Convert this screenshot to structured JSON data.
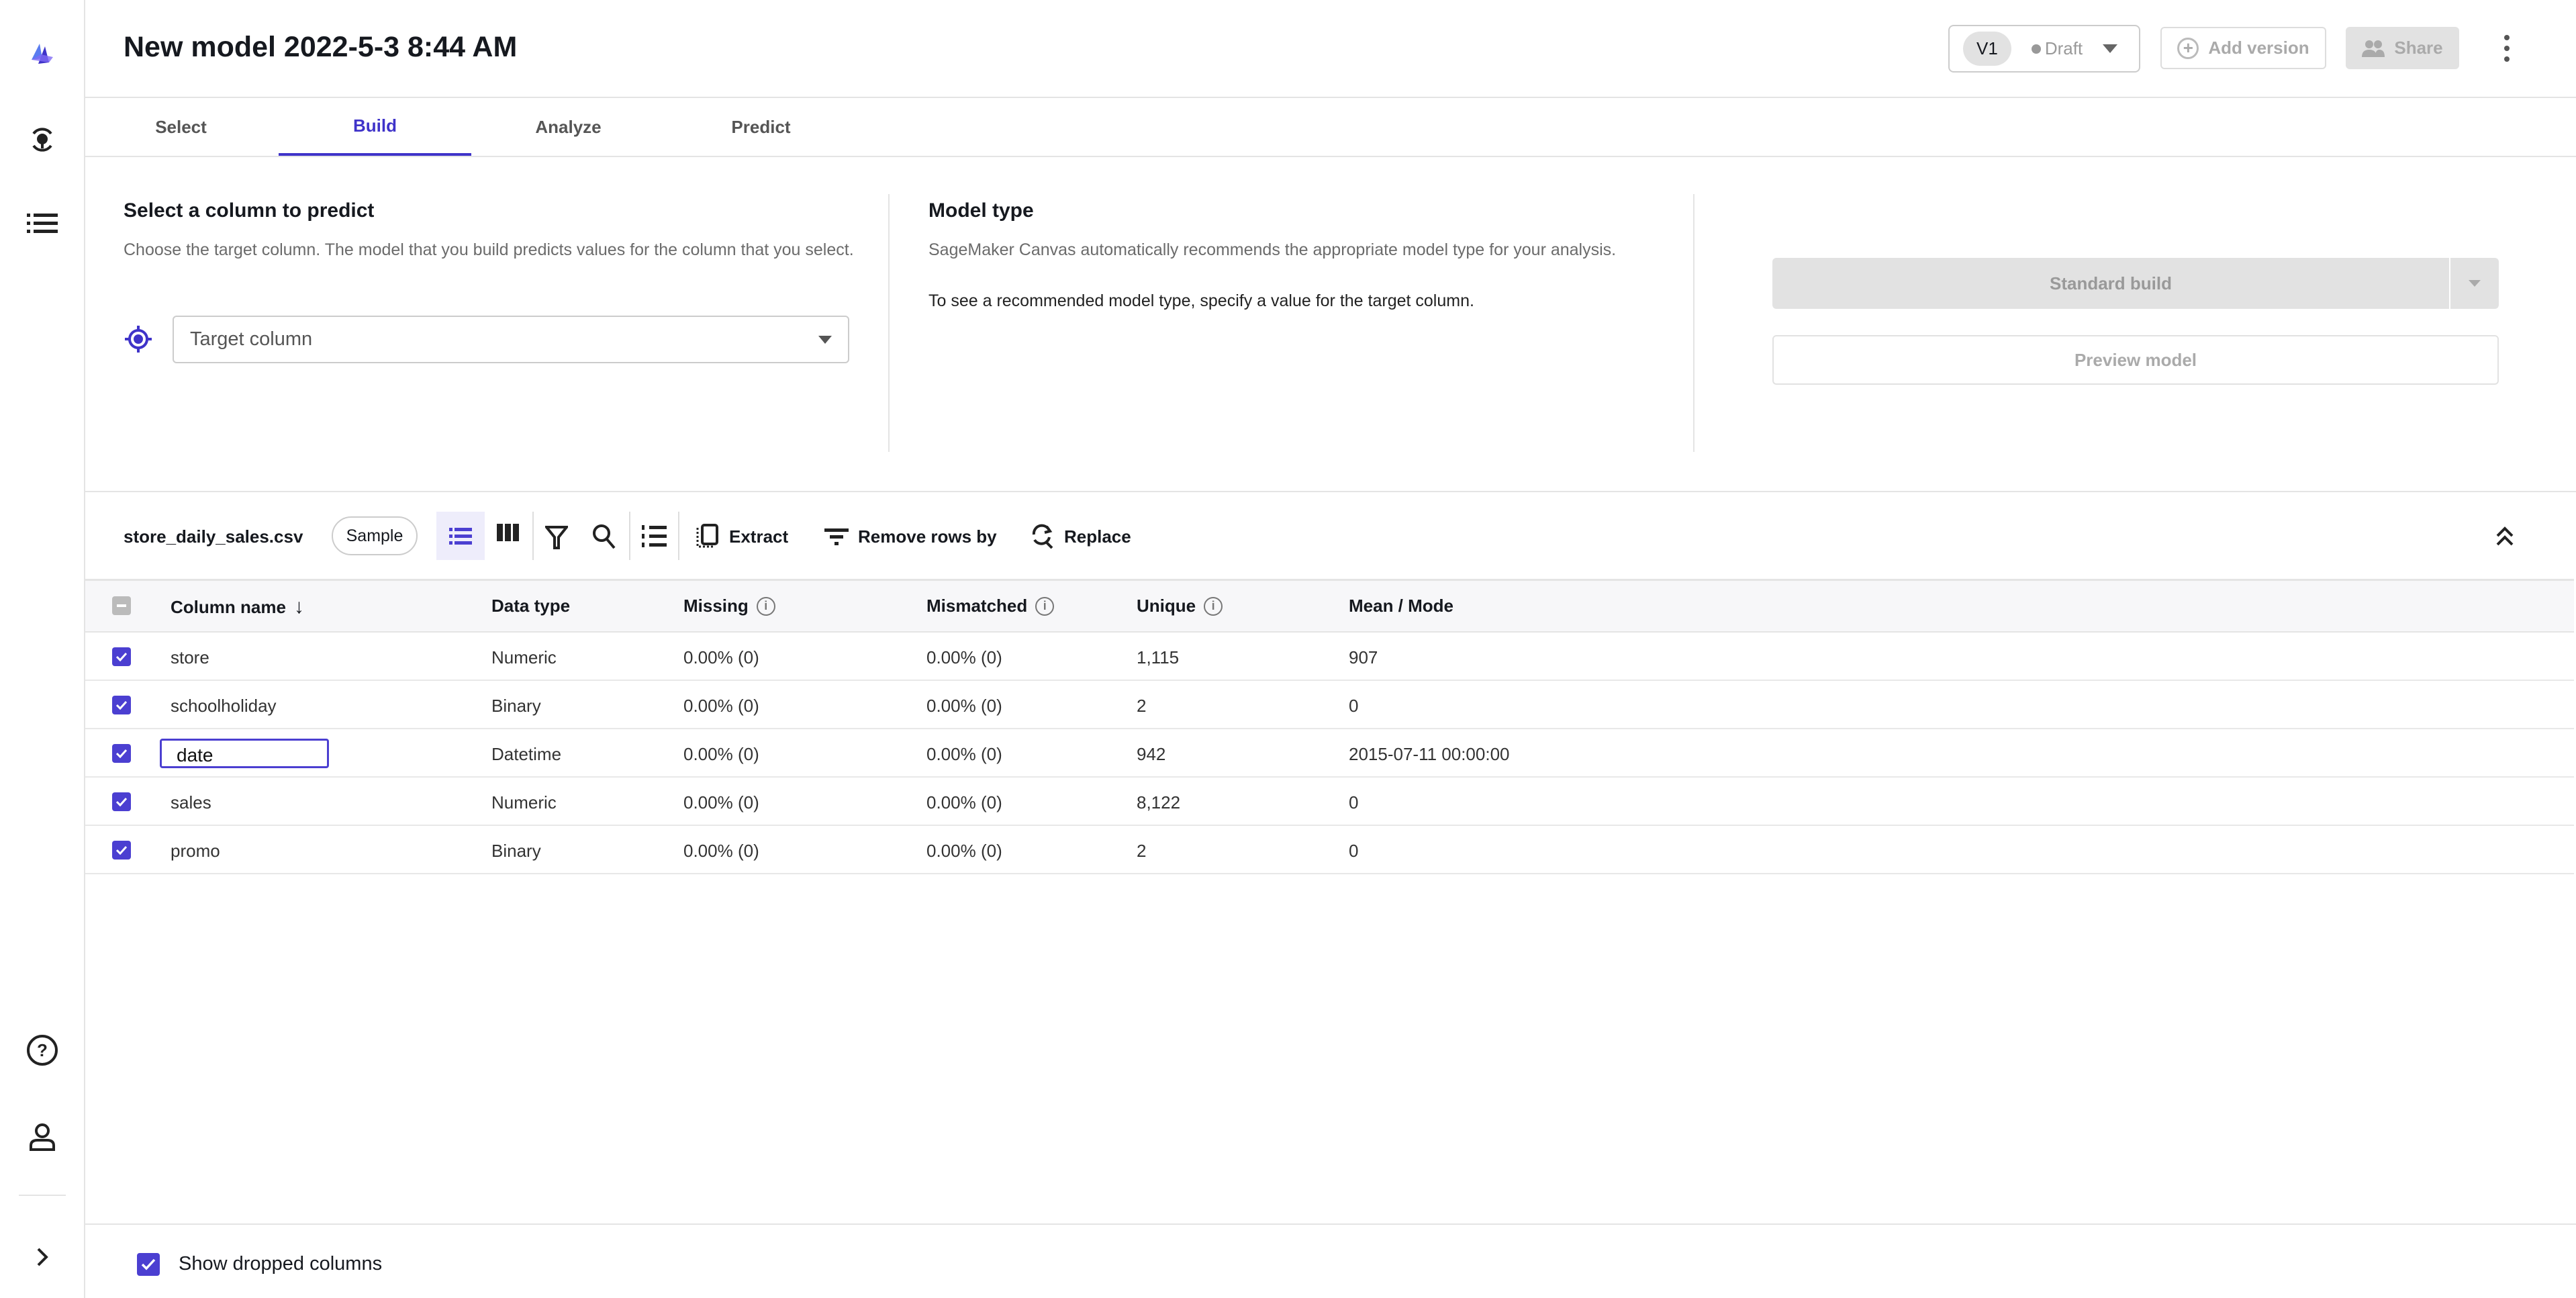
{
  "header": {
    "title": "New model 2022-5-3 8:44 AM",
    "version": "V1",
    "status": "Draft",
    "add_version": "Add version",
    "share": "Share"
  },
  "tabs": [
    {
      "label": "Select"
    },
    {
      "label": "Build",
      "active": true
    },
    {
      "label": "Analyze"
    },
    {
      "label": "Predict"
    }
  ],
  "target": {
    "heading": "Select a column to predict",
    "description": "Choose the target column. The model that you build predicts values for the column that you select.",
    "placeholder": "Target column"
  },
  "model_type": {
    "heading": "Model type",
    "line1": "SageMaker Canvas automatically recommends the appropriate model type for your analysis.",
    "line2": "To see a recommended model type, specify a value for the target column."
  },
  "actions": {
    "standard_build": "Standard build",
    "preview_model": "Preview model"
  },
  "toolbar": {
    "dataset": "store_daily_sales.csv",
    "sample": "Sample",
    "extract": "Extract",
    "remove_rows": "Remove rows by",
    "replace": "Replace"
  },
  "table": {
    "headers": [
      "Column name",
      "Data type",
      "Missing",
      "Mismatched",
      "Unique",
      "Mean / Mode"
    ],
    "rows": [
      [
        "store",
        "Numeric",
        "0.00% (0)",
        "0.00% (0)",
        "1,115",
        "907"
      ],
      [
        "schoolholiday",
        "Binary",
        "0.00% (0)",
        "0.00% (0)",
        "2",
        "0"
      ],
      [
        "date",
        "Datetime",
        "0.00% (0)",
        "0.00% (0)",
        "942",
        "2015-07-11 00:00:00"
      ],
      [
        "sales",
        "Numeric",
        "0.00% (0)",
        "0.00% (0)",
        "8,122",
        "0"
      ],
      [
        "promo",
        "Binary",
        "0.00% (0)",
        "0.00% (0)",
        "2",
        "0"
      ]
    ]
  },
  "footer": {
    "show_dropped": "Show dropped columns",
    "show_dropped_checked": true
  },
  "colors": {
    "accent": "#3f33c9",
    "checkbox": "#4b3fd1"
  }
}
